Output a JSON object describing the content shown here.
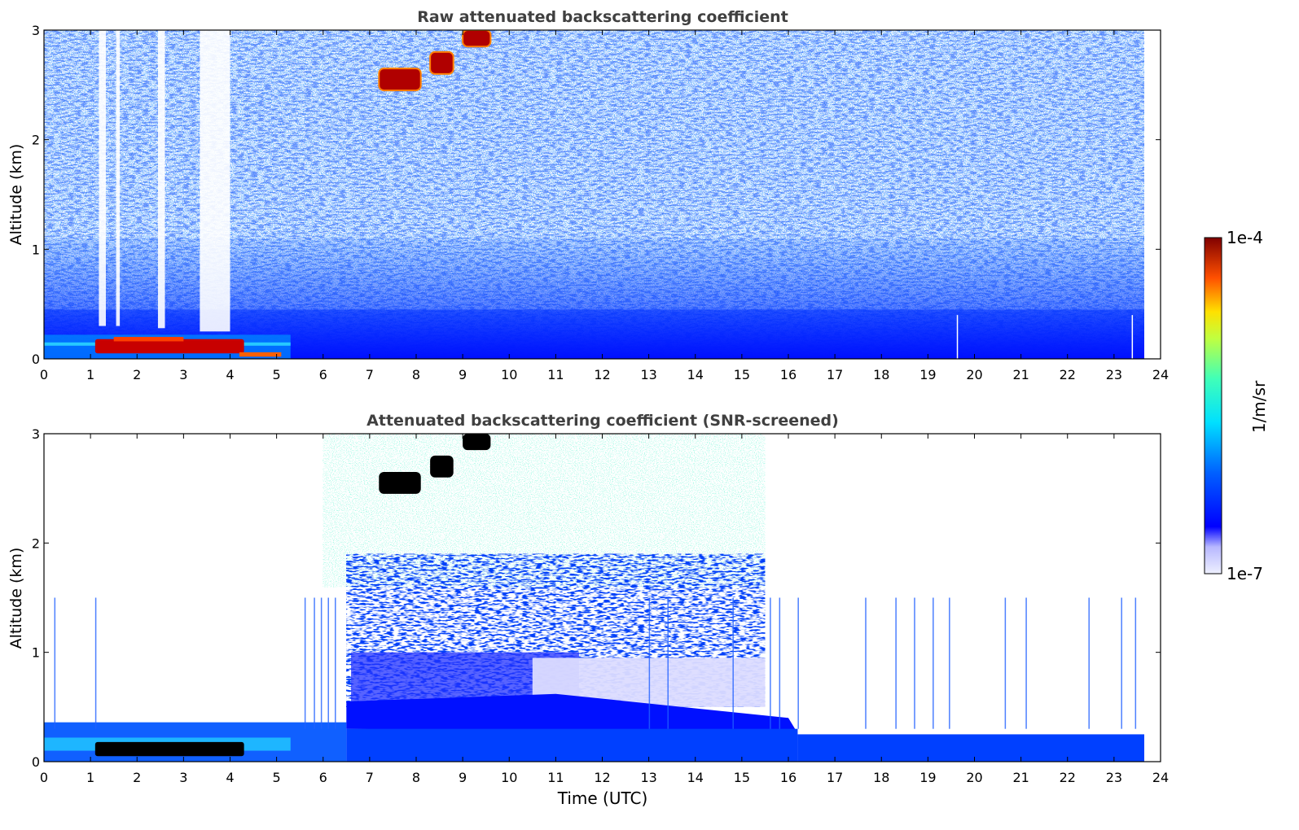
{
  "chart_data": [
    {
      "type": "heatmap",
      "title": "Raw attenuated backscattering coefficient",
      "xlabel": "",
      "ylabel": "Altitude (km)",
      "xlim": [
        0,
        24
      ],
      "ylim": [
        0,
        3
      ],
      "xticks": [
        "0",
        "1",
        "2",
        "3",
        "4",
        "5",
        "6",
        "7",
        "8",
        "9",
        "10",
        "11",
        "12",
        "13",
        "14",
        "15",
        "16",
        "17",
        "18",
        "19",
        "20",
        "21",
        "22",
        "23",
        "24"
      ],
      "yticks": [
        "0",
        "1",
        "2",
        "3"
      ],
      "features": {
        "surface_layer_top_km": 0.45,
        "cloud_low_time_range": [
          1.1,
          5.1
        ],
        "cloud_low_alt_km": [
          0.02,
          0.22
        ],
        "cloud_high_segments": [
          {
            "t": [
              7.2,
              8.1
            ],
            "alt": [
              2.45,
              2.65
            ]
          },
          {
            "t": [
              8.3,
              8.8
            ],
            "alt": [
              2.6,
              2.8
            ]
          },
          {
            "t": [
              9.0,
              9.6
            ],
            "alt": [
              2.85,
              3.0
            ]
          }
        ],
        "data_end_time": 23.65
      }
    },
    {
      "type": "heatmap",
      "title": "Attenuated backscattering coefficient (SNR-screened)",
      "xlabel": "Time (UTC)",
      "ylabel": "Altitude (km)",
      "xlim": [
        0,
        24
      ],
      "ylim": [
        0,
        3
      ],
      "xticks": [
        "0",
        "1",
        "2",
        "3",
        "4",
        "5",
        "6",
        "7",
        "8",
        "9",
        "10",
        "11",
        "12",
        "13",
        "14",
        "15",
        "16",
        "17",
        "18",
        "19",
        "20",
        "21",
        "22",
        "23",
        "24"
      ],
      "yticks": [
        "0",
        "1",
        "2",
        "3"
      ],
      "features": {
        "screened_layer_top_km": 0.3,
        "noisy_region_time_range": [
          6.5,
          15.5
        ],
        "data_end_time": 23.65
      }
    }
  ],
  "colorbar": {
    "label": "1/m/sr",
    "max_label": "1e-4",
    "min_label": "1e-7",
    "scale": "log"
  },
  "colors": {
    "axis": "#000000",
    "title": "#404040"
  }
}
